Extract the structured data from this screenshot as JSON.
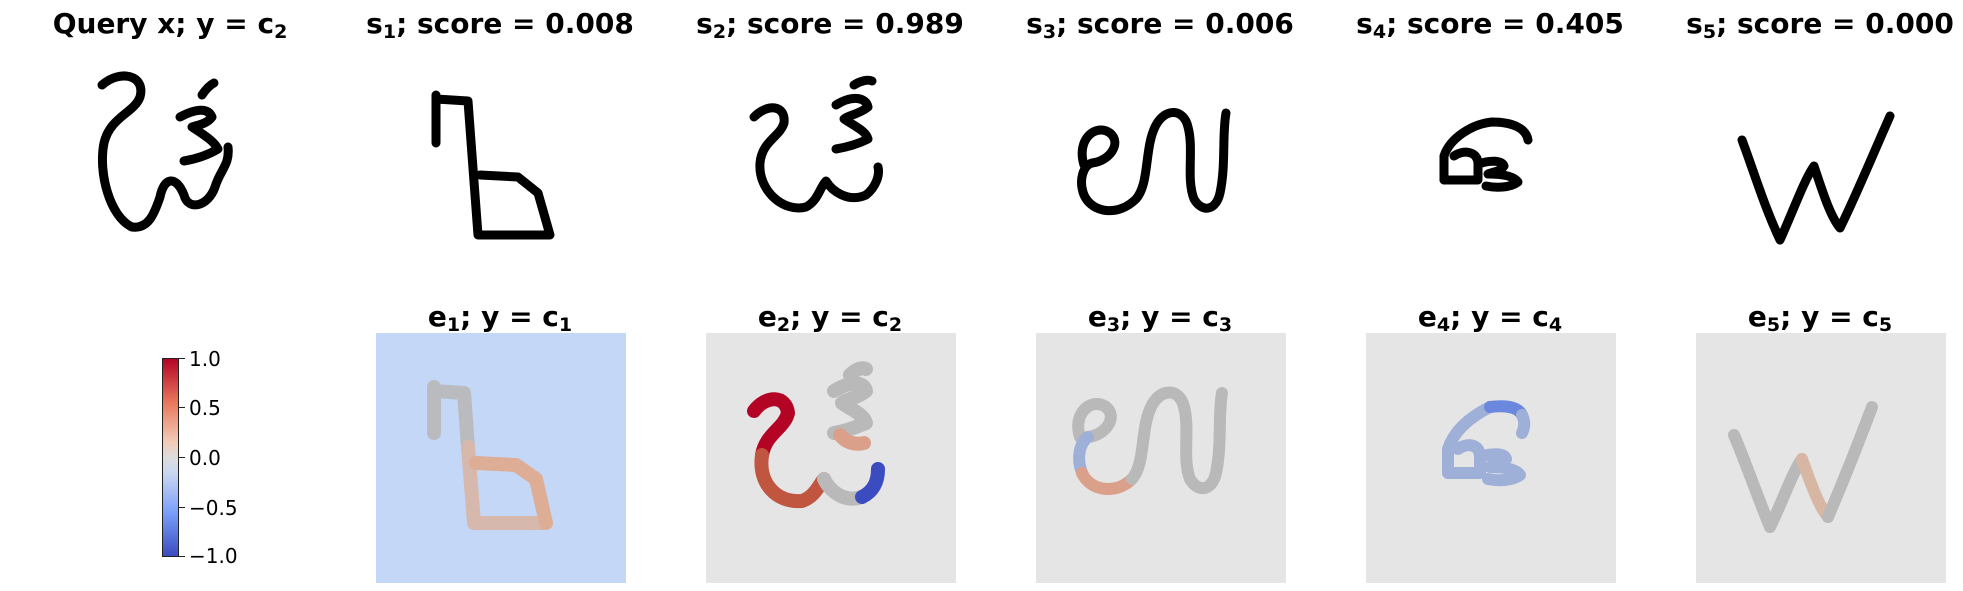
{
  "top_row": [
    {
      "prefix": "Query x; y = c",
      "sub": "2",
      "suffix": ""
    },
    {
      "prefix": "s",
      "sub": "1",
      "suffix": "; score = 0.008"
    },
    {
      "prefix": "s",
      "sub": "2",
      "suffix": "; score = 0.989"
    },
    {
      "prefix": "s",
      "sub": "3",
      "suffix": "; score = 0.006"
    },
    {
      "prefix": "s",
      "sub": "4",
      "suffix": "; score = 0.405"
    },
    {
      "prefix": "s",
      "sub": "5",
      "suffix": "; score = 0.000"
    }
  ],
  "bottom_row": [
    {
      "e": "e",
      "e_sub": "1",
      "mid": "; y = c",
      "c_sub": "1"
    },
    {
      "e": "e",
      "e_sub": "2",
      "mid": "; y = c",
      "c_sub": "2"
    },
    {
      "e": "e",
      "e_sub": "3",
      "mid": "; y = c",
      "c_sub": "3"
    },
    {
      "e": "e",
      "e_sub": "4",
      "mid": "; y = c",
      "c_sub": "4"
    },
    {
      "e": "e",
      "e_sub": "5",
      "mid": "; y = c",
      "c_sub": "5"
    }
  ],
  "colorbar": {
    "labels": [
      "1.0",
      "0.5",
      "0.0",
      "−0.5",
      "−1.0"
    ],
    "colormap": "coolwarm",
    "colors": {
      "high": "#b40426",
      "mid": "#dddddd",
      "low": "#3b4cc0"
    }
  },
  "heatmap_backgrounds": [
    "#c5d7f6",
    "#e5e5e5",
    "#e5e5e5",
    "#e5e5e5",
    "#e5e5e5"
  ]
}
